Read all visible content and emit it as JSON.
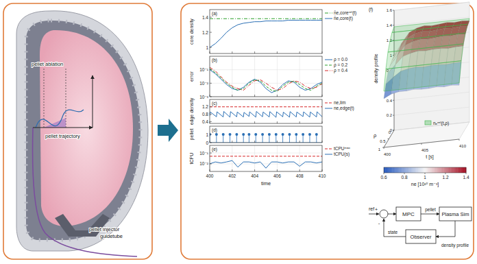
{
  "illustration": {
    "labels": [
      "pellet ablation",
      "pellet trajectory",
      "pellet injector",
      "guidetube"
    ]
  },
  "chart_data": [
    {
      "type": "line",
      "title": "(a)",
      "ylabel": "core density",
      "xlim": [
        400,
        410
      ],
      "xticks": [
        400,
        402,
        404,
        406,
        408,
        410
      ],
      "ylim": [
        0.92,
        1.5
      ],
      "yticks": [
        1,
        1.2,
        1.4
      ],
      "grid": false,
      "tick_labels": "y",
      "legend": "right",
      "series": [
        {
          "name": "n̄e,coreʳᵉᶠ(t)",
          "color": "#2ca02c",
          "line_style": "dashdot",
          "x": [
            400,
            410
          ],
          "values": [
            1.38,
            1.38
          ]
        },
        {
          "name": "n̄e,core(t)",
          "color": "#2a6fb5",
          "line_style": "solid",
          "x": [
            400,
            400.5,
            401,
            401.5,
            402,
            402.5,
            403,
            403.5,
            404,
            404.5,
            405,
            405.5,
            406,
            406.5,
            407,
            407.5,
            408,
            408.5,
            409,
            409.5,
            410
          ],
          "values": [
            1.0,
            1.05,
            1.12,
            1.2,
            1.26,
            1.3,
            1.32,
            1.33,
            1.34,
            1.34,
            1.35,
            1.35,
            1.35,
            1.35,
            1.36,
            1.36,
            1.36,
            1.36,
            1.36,
            1.36,
            1.36
          ]
        }
      ]
    },
    {
      "type": "line",
      "title": "(b)",
      "ylabel": "error",
      "log": "y",
      "xlim": [
        400,
        410
      ],
      "xticks": [
        400,
        402,
        404,
        406,
        408,
        410
      ],
      "ylim": [
        0.001,
        1
      ],
      "yticks": [
        {
          "value": 0.1,
          "label": "10⁻¹"
        },
        {
          "value": 0.01,
          "label": "10⁻²"
        },
        {
          "value": 0.001,
          "label": "10⁻³"
        }
      ],
      "grid": true,
      "tick_labels": "y",
      "legend": "right",
      "series": [
        {
          "name": "ρ = 0.0",
          "color": "#2a6fb5",
          "line_style": "solid",
          "x": [
            400,
            400.5,
            401,
            401.5,
            402,
            402.5,
            403,
            403.5,
            404,
            404.5,
            405,
            405.5,
            406,
            406.5,
            407,
            407.5,
            408,
            408.5,
            409,
            409.5,
            410
          ],
          "values": [
            0.1,
            0.05,
            0.02,
            0.008,
            0.004,
            0.003,
            0.005,
            0.012,
            0.02,
            0.012,
            0.004,
            0.002,
            0.003,
            0.008,
            0.015,
            0.012,
            0.005,
            0.003,
            0.004,
            0.008,
            0.012
          ]
        },
        {
          "name": "ρ = 0.2",
          "color": "#2ca02c",
          "line_style": "dashed",
          "x": [
            400,
            400.5,
            401,
            401.5,
            402,
            402.5,
            403,
            403.5,
            404,
            404.5,
            405,
            405.5,
            406,
            406.5,
            407,
            407.5,
            408,
            408.5,
            409,
            409.5,
            410
          ],
          "values": [
            0.12,
            0.06,
            0.025,
            0.01,
            0.005,
            0.003,
            0.004,
            0.01,
            0.018,
            0.015,
            0.006,
            0.003,
            0.0025,
            0.006,
            0.012,
            0.014,
            0.008,
            0.004,
            0.003,
            0.006,
            0.01
          ]
        },
        {
          "name": "ρ = 0.4",
          "color": "#d62728",
          "line_style": "dashdot",
          "x": [
            400,
            400.5,
            401,
            401.5,
            402,
            402.5,
            403,
            403.5,
            404,
            404.5,
            405,
            405.5,
            406,
            406.5,
            407,
            407.5,
            408,
            408.5,
            409,
            409.5,
            410
          ],
          "values": [
            0.15,
            0.08,
            0.03,
            0.012,
            0.006,
            0.004,
            0.003,
            0.007,
            0.015,
            0.018,
            0.01,
            0.005,
            0.003,
            0.004,
            0.009,
            0.015,
            0.012,
            0.006,
            0.004,
            0.005,
            0.009
          ]
        }
      ]
    },
    {
      "type": "line",
      "title": "(c)",
      "ylabel": "edge density",
      "xlim": [
        400,
        410
      ],
      "xticks": [
        400,
        402,
        404,
        406,
        408,
        410
      ],
      "ylim": [
        0.3,
        1.6
      ],
      "yticks": [
        0.4,
        0.8,
        1.2
      ],
      "grid": false,
      "tick_labels": "y",
      "legend": "right",
      "series": [
        {
          "name": "ne,lim",
          "color": "#d62728",
          "line_style": "dashed",
          "x": [
            400,
            410
          ],
          "values": [
            1.2,
            1.2
          ]
        },
        {
          "name": "ne,edge(t)",
          "color": "#2a6fb5",
          "line_style": "solid",
          "x": [
            400,
            400.05,
            400.6,
            400.65,
            401.2,
            401.25,
            401.8,
            401.85,
            402.4,
            402.45,
            403.0,
            403.05,
            403.5,
            403.55,
            404.1,
            404.15,
            404.7,
            404.75,
            405.3,
            405.35,
            405.9,
            405.95,
            406.5,
            406.55,
            407.1,
            407.15,
            407.7,
            407.75,
            408.3,
            408.35,
            408.9,
            408.95,
            409.5,
            409.55,
            410
          ],
          "values": [
            0.7,
            0.92,
            0.66,
            0.93,
            0.65,
            0.95,
            0.64,
            0.94,
            0.66,
            0.92,
            0.65,
            0.9,
            0.68,
            0.93,
            0.64,
            0.95,
            0.66,
            0.92,
            0.65,
            0.94,
            0.63,
            0.93,
            0.66,
            0.91,
            0.64,
            0.94,
            0.65,
            0.92,
            0.67,
            0.93,
            0.64,
            0.92,
            0.65,
            0.93,
            0.66
          ]
        }
      ]
    },
    {
      "type": "stem",
      "title": "(d)",
      "ylabel": "pellet",
      "xlim": [
        400,
        410
      ],
      "xticks": [
        400,
        402,
        404,
        406,
        408,
        410
      ],
      "ylim": [
        0,
        2
      ],
      "yticks": [
        0,
        1
      ],
      "grid": false,
      "tick_labels": "y",
      "series": [
        {
          "name": "pellet",
          "color": "#2a6fb5",
          "marker": "circle",
          "x": [
            400.0,
            400.6,
            401.2,
            401.8,
            402.4,
            403.0,
            403.5,
            404.1,
            404.7,
            405.3,
            405.9,
            406.5,
            407.1,
            407.7,
            408.3,
            408.9,
            409.5
          ],
          "values": [
            1,
            1,
            1,
            1,
            1,
            1,
            1,
            1,
            1,
            1,
            1,
            1,
            1,
            1,
            1,
            1,
            1
          ]
        }
      ]
    },
    {
      "type": "line",
      "title": "(e)",
      "ylabel": "tCPU",
      "xlabel": "time",
      "log": "y",
      "xlim": [
        400,
        410
      ],
      "xticks": [
        400,
        402,
        404,
        406,
        408,
        410
      ],
      "ylim": [
        0.002,
        0.5
      ],
      "yticks": [
        {
          "value": 0.1,
          "label": "10⁻¹"
        },
        {
          "value": 0.01,
          "label": "10⁻²"
        }
      ],
      "grid": true,
      "legend": "right",
      "series": [
        {
          "name": "tCPUᵐᵃˣ",
          "color": "#d62728",
          "line_style": "dashed",
          "x": [
            400,
            410
          ],
          "values": [
            0.05,
            0.05
          ]
        },
        {
          "name": "tCPU(s)",
          "color": "#2a6fb5",
          "line_style": "solid",
          "x": [
            400,
            400.5,
            401,
            401.5,
            402,
            402.5,
            403,
            403.5,
            404,
            404.5,
            405,
            405.5,
            406,
            406.5,
            407,
            407.5,
            408,
            408.5,
            409,
            409.5,
            410
          ],
          "values": [
            0.01,
            0.015,
            0.012,
            0.015,
            0.02,
            0.005,
            0.015,
            0.015,
            0.012,
            0.015,
            0.004,
            0.015,
            0.015,
            0.012,
            0.015,
            0.015,
            0.006,
            0.015,
            0.015,
            0.012,
            0.015
          ]
        }
      ]
    },
    {
      "type": "surface",
      "title": "(f)",
      "zlabel": "density profile",
      "ylabel": "ρ",
      "xlabel": "t [s]",
      "xlim": [
        400,
        410
      ],
      "xticks": [
        400,
        405,
        410
      ],
      "ylim": [
        0,
        1
      ],
      "yticks": [
        0,
        0.5,
        1
      ],
      "zlim": [
        0,
        1.6
      ],
      "zticks": [
        0,
        0.2,
        0.4,
        0.6,
        0.8,
        1,
        1.2,
        1.4,
        1.6
      ],
      "x": [
        400,
        401,
        402,
        403,
        404,
        405,
        406,
        407,
        408,
        409,
        410
      ],
      "y": [
        0,
        0.2,
        0.4,
        0.6,
        0.8,
        1
      ],
      "values": [
        [
          1.0,
          0.98,
          0.95,
          0.9,
          0.8,
          0.65
        ],
        [
          1.15,
          1.12,
          1.08,
          1.0,
          0.88,
          0.7
        ],
        [
          1.28,
          1.25,
          1.2,
          1.1,
          0.95,
          0.72
        ],
        [
          1.33,
          1.3,
          1.24,
          1.13,
          0.97,
          0.72
        ],
        [
          1.35,
          1.32,
          1.26,
          1.15,
          0.98,
          0.73
        ],
        [
          1.34,
          1.31,
          1.25,
          1.14,
          0.97,
          0.72
        ],
        [
          1.35,
          1.32,
          1.26,
          1.15,
          0.98,
          0.72
        ],
        [
          1.36,
          1.33,
          1.27,
          1.15,
          0.98,
          0.73
        ],
        [
          1.35,
          1.32,
          1.26,
          1.14,
          0.97,
          0.72
        ],
        [
          1.36,
          1.33,
          1.27,
          1.15,
          0.98,
          0.73
        ],
        [
          1.35,
          1.32,
          1.26,
          1.15,
          0.98,
          0.72
        ]
      ],
      "reference": {
        "name": "nₑʳᵉᶠ(t,ρ)",
        "color": "#3cb44b",
        "values": [
          1.38,
          1.35,
          1.28,
          1.18,
          1.0,
          0.75
        ]
      },
      "colorbar": {
        "label": "ne [10²⁰ m⁻³]",
        "range": [
          0.6,
          1.4
        ],
        "ticks": [
          0.6,
          0.8,
          1,
          1.2,
          1.4
        ]
      }
    }
  ],
  "diagram": {
    "nodes": [
      {
        "label": "MPC"
      },
      {
        "label": "Plasma Sim"
      },
      {
        "label": "Observer"
      }
    ],
    "signs": [
      "+",
      "-"
    ],
    "edges": [
      {
        "label": "ref"
      },
      {
        "label": "pellet"
      },
      {
        "label": "density profile"
      },
      {
        "label": "state"
      }
    ]
  }
}
